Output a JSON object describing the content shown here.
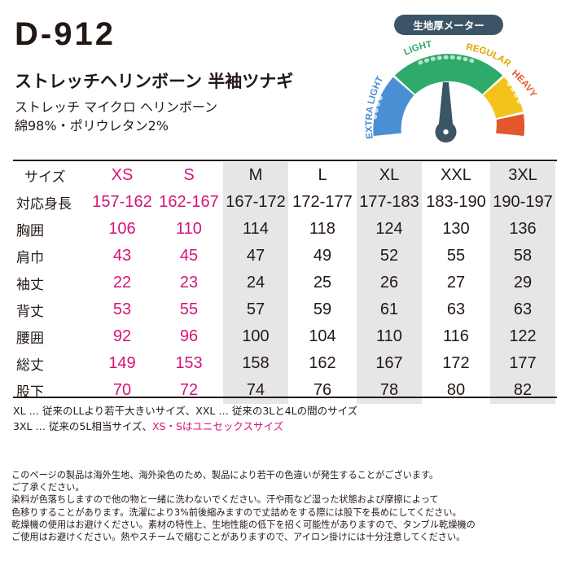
{
  "product": {
    "model": "D-912",
    "title": "ストレッチヘリンボーン 半袖ツナギ",
    "fabric": "ストレッチ マイクロ ヘリンボーン",
    "composition": "綿98%・ポリウレタン2%"
  },
  "thickness_meter": {
    "label": "生地厚メーター",
    "levels": [
      "EXTRA LIGHT",
      "LIGHT",
      "REGULAR",
      "HEAVY"
    ],
    "selected": "LIGHT",
    "colors": {
      "extra_light": "#4a8fd4",
      "light": "#2eaa6a",
      "regular": "#f3c319",
      "heavy": "#e2572b",
      "needle": "#3b5566",
      "badge": "#3b5566"
    }
  },
  "size_table": {
    "header_label": "サイズ",
    "sizes": [
      "XS",
      "S",
      "M",
      "L",
      "XL",
      "XXL",
      "3XL"
    ],
    "rows": [
      {
        "label": "対応身長",
        "values": [
          "157-162",
          "162-167",
          "167-172",
          "172-177",
          "177-183",
          "183-190",
          "190-197"
        ]
      },
      {
        "label": "胸囲",
        "values": [
          "106",
          "110",
          "114",
          "118",
          "124",
          "130",
          "136"
        ]
      },
      {
        "label": "肩巾",
        "values": [
          "43",
          "45",
          "47",
          "49",
          "52",
          "55",
          "58"
        ]
      },
      {
        "label": "袖丈",
        "values": [
          "22",
          "23",
          "24",
          "25",
          "26",
          "27",
          "29"
        ]
      },
      {
        "label": "背丈",
        "values": [
          "53",
          "55",
          "57",
          "59",
          "61",
          "63",
          "63"
        ]
      },
      {
        "label": "腰囲",
        "values": [
          "92",
          "96",
          "100",
          "104",
          "110",
          "116",
          "122"
        ]
      },
      {
        "label": "総丈",
        "values": [
          "149",
          "153",
          "158",
          "162",
          "167",
          "172",
          "177"
        ]
      },
      {
        "label": "股下",
        "values": [
          "70",
          "72",
          "74",
          "76",
          "78",
          "80",
          "82"
        ]
      }
    ],
    "highlight_color": "#d6137b",
    "shade_color": "#e6e6e6"
  },
  "notes": {
    "line1": "XL … 従来のLLより若干大きいサイズ、XXL … 従来の3Lと4Lの間のサイズ",
    "line2_plain": "3XL … 従来の5L相当サイズ、",
    "line2_pink": "XS・Sはユニセックスサイズ"
  },
  "disclaimer": [
    "このページの製品は海外生地、海外染色のため、製品により若干の色違いが発生することがございます。",
    "ご了承ください。",
    "染料が色落ちしますので他の物と一緒に洗わないでください。汗や雨など湿った状態および摩擦によって",
    "色移りすることがあります。洗濯により3%前後縮みますので丈詰めをする際には股下を長めにしてください。",
    "乾燥機の使用はお避けください。素材の特性上、生地性能の低下を招く可能性がありますので、タンブル乾燥機の",
    "ご使用はお避けください。熱やスチームで縮むことがありますので、アイロン掛けには十分注意してください。"
  ]
}
